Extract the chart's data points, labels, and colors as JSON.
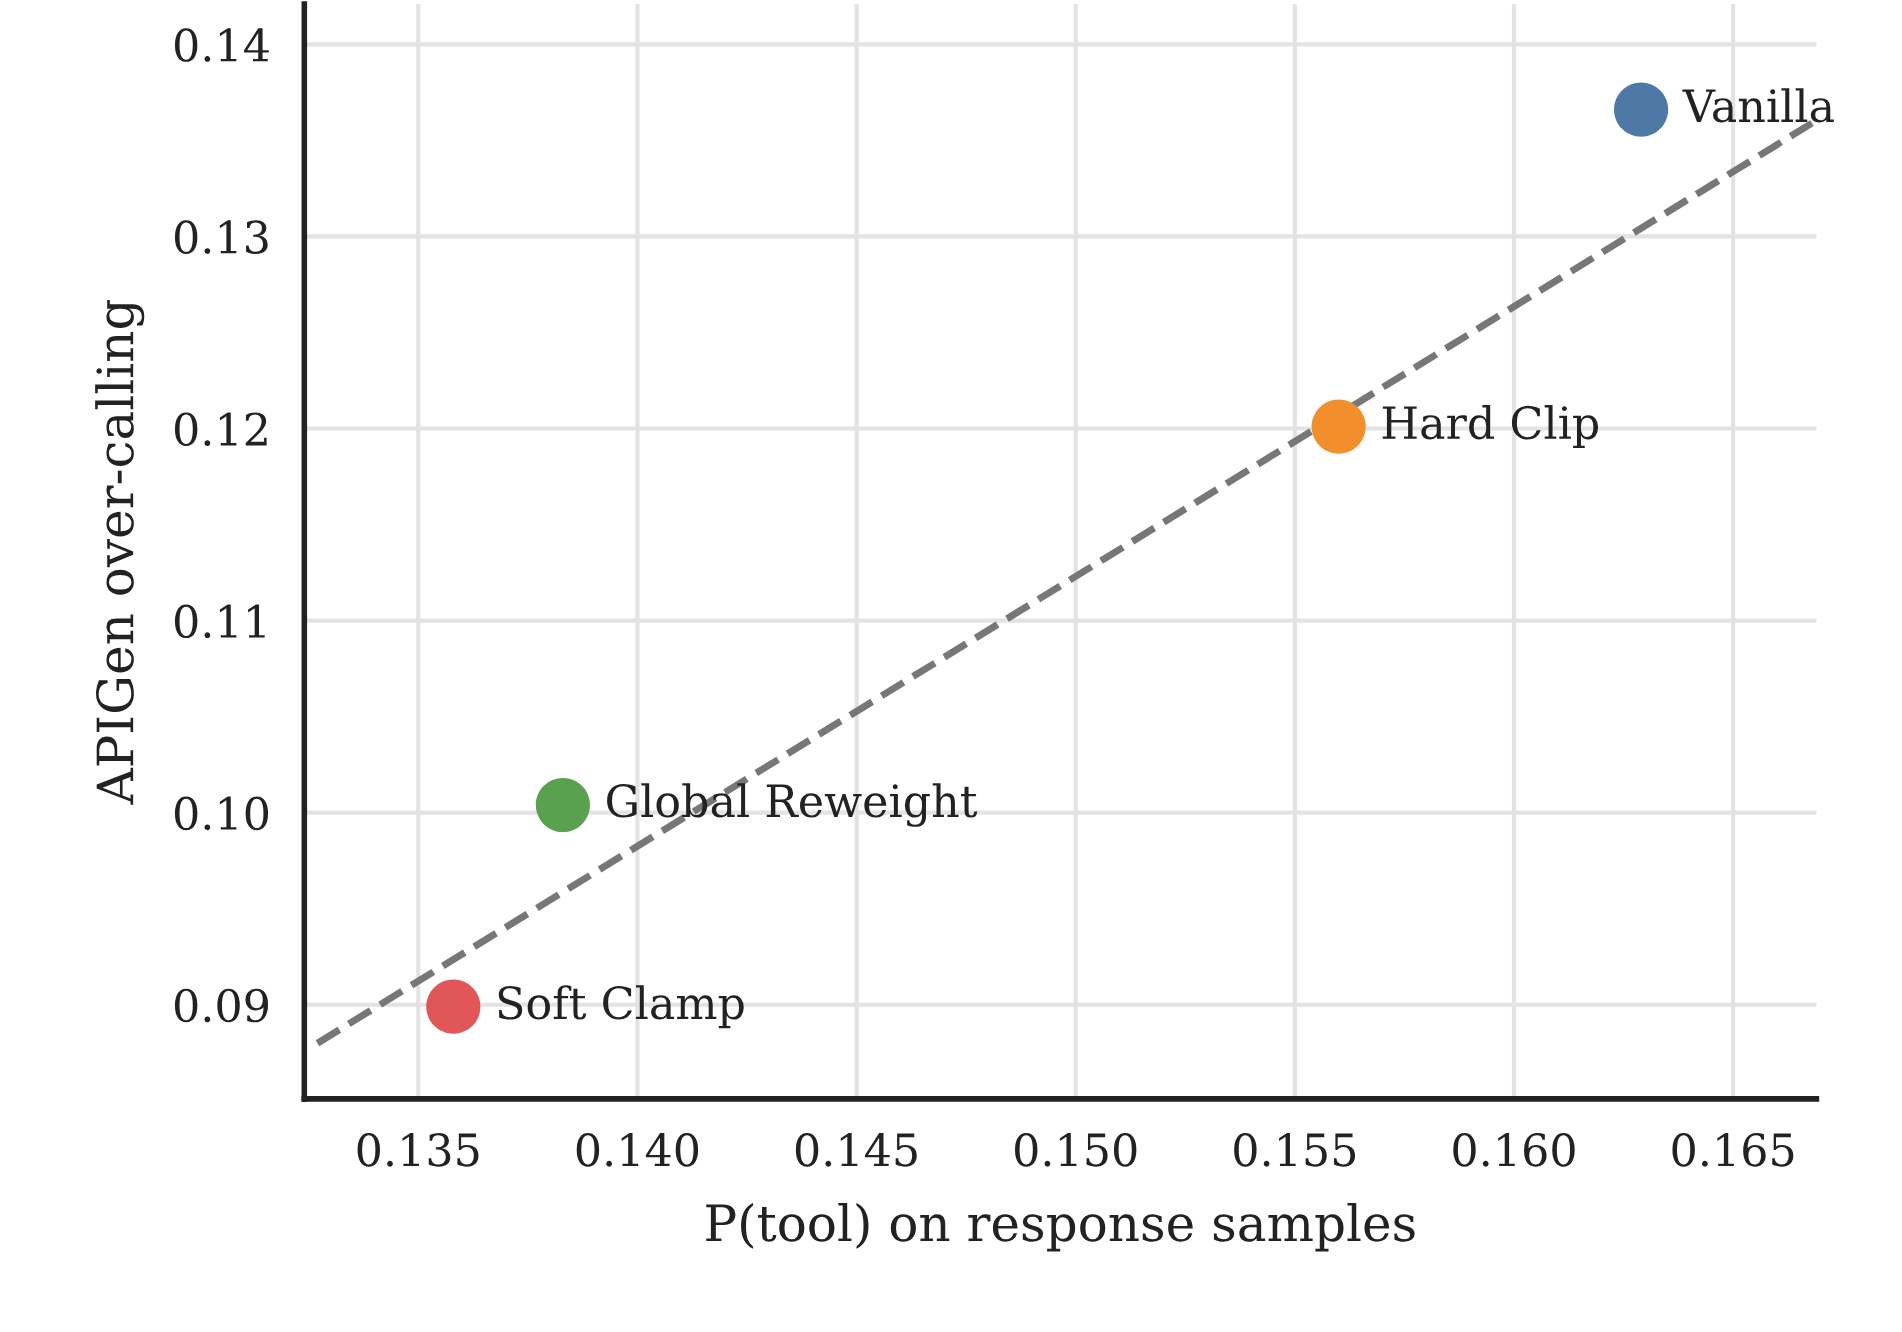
{
  "chart_data": {
    "type": "scatter",
    "xlabel": "P(tool) on response samples",
    "ylabel": "APIGen over-calling",
    "xlim": [
      0.1324,
      0.1669
    ],
    "ylim": [
      0.0851,
      0.1421
    ],
    "xticks": [
      {
        "value": 0.135,
        "label": "0.135"
      },
      {
        "value": 0.14,
        "label": "0.140"
      },
      {
        "value": 0.145,
        "label": "0.145"
      },
      {
        "value": 0.15,
        "label": "0.150"
      },
      {
        "value": 0.155,
        "label": "0.155"
      },
      {
        "value": 0.16,
        "label": "0.160"
      },
      {
        "value": 0.165,
        "label": "0.165"
      }
    ],
    "yticks": [
      {
        "value": 0.09,
        "label": "0.09"
      },
      {
        "value": 0.1,
        "label": "0.10"
      },
      {
        "value": 0.11,
        "label": "0.11"
      },
      {
        "value": 0.12,
        "label": "0.12"
      },
      {
        "value": 0.13,
        "label": "0.13"
      },
      {
        "value": 0.14,
        "label": "0.14"
      }
    ],
    "grid": true,
    "marker": "circle",
    "series": [
      {
        "name": "Vanilla",
        "color": "#4e79a7",
        "x": [
          0.1629
        ],
        "values": [
          0.1366
        ]
      },
      {
        "name": "Hard Clip",
        "color": "#f28e2b",
        "x": [
          0.156
        ],
        "values": [
          0.1201
        ]
      },
      {
        "name": "Global Reweight",
        "color": "#59a14f",
        "x": [
          0.1383
        ],
        "values": [
          0.1004
        ]
      },
      {
        "name": "Soft Clamp",
        "color": "#e15759",
        "x": [
          0.1358
        ],
        "values": [
          0.0899
        ]
      },
      {
        "type": "line",
        "color": "#777777",
        "line_style": "dashed",
        "marker": "none",
        "x": [
          0.1327,
          0.1668
        ],
        "values": [
          0.088,
          0.1359
        ]
      }
    ]
  }
}
